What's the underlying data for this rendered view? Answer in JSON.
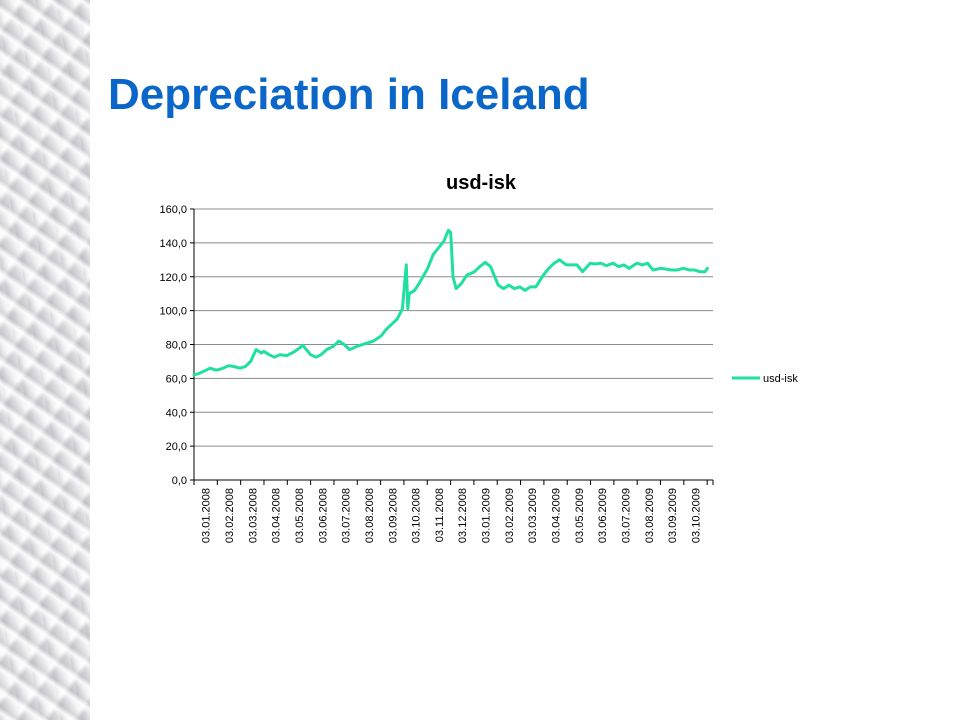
{
  "slide": {
    "title": "Depreciation in Iceland"
  },
  "colors": {
    "title": "#0b66c9",
    "series": "#1fdfa2",
    "grid": "#8c8c8c"
  },
  "chart_data": {
    "type": "line",
    "title": "usd-isk",
    "xlabel": "",
    "ylabel": "",
    "ylim": [
      0,
      160
    ],
    "yticks": [
      "0,0",
      "20,0",
      "40,0",
      "60,0",
      "80,0",
      "100,0",
      "120,0",
      "140,0",
      "160,0"
    ],
    "x_ticks": [
      "03.01.2008",
      "03.02.2008",
      "03.03.2008",
      "03.04.2008",
      "03.05.2008",
      "03.06.2008",
      "03.07.2008",
      "03.08.2008",
      "03.09.2008",
      "03.10.2008",
      "03.11.2008",
      "03.12.2008",
      "03.01.2009",
      "03.02.2009",
      "03.03.2009",
      "03.04.2009",
      "03.05.2009",
      "03.06.2009",
      "03.07.2009",
      "03.08.2009",
      "03.09.2009",
      "03.10.2009"
    ],
    "x_range": [
      "03.01.2008",
      "early 11.2009"
    ],
    "grid": "horizontal major gridlines",
    "legend": {
      "position": "right",
      "entries": [
        "usd-isk"
      ]
    },
    "series": [
      {
        "name": "usd-isk",
        "points": [
          [
            "03.01.2008",
            62
          ],
          [
            "10.01.2008",
            63
          ],
          [
            "17.01.2008",
            64.5
          ],
          [
            "24.01.2008",
            66
          ],
          [
            "31.01.2008",
            65
          ],
          [
            "03.02.2008",
            65
          ],
          [
            "10.02.2008",
            66
          ],
          [
            "17.02.2008",
            67.5
          ],
          [
            "24.02.2008",
            67
          ],
          [
            "03.03.2008",
            66
          ],
          [
            "10.03.2008",
            67
          ],
          [
            "17.03.2008",
            70
          ],
          [
            "24.03.2008",
            77
          ],
          [
            "31.03.2008",
            75
          ],
          [
            "03.04.2008",
            76
          ],
          [
            "10.04.2008",
            74
          ],
          [
            "17.04.2008",
            72.5
          ],
          [
            "24.04.2008",
            74
          ],
          [
            "03.05.2008",
            73.5
          ],
          [
            "10.05.2008",
            75
          ],
          [
            "17.05.2008",
            77
          ],
          [
            "24.05.2008",
            79.5
          ],
          [
            "03.06.2008",
            74
          ],
          [
            "10.06.2008",
            72.5
          ],
          [
            "17.06.2008",
            74
          ],
          [
            "24.06.2008",
            77
          ],
          [
            "03.07.2008",
            79
          ],
          [
            "10.07.2008",
            82
          ],
          [
            "17.07.2008",
            80
          ],
          [
            "24.07.2008",
            77
          ],
          [
            "03.08.2008",
            79
          ],
          [
            "10.08.2008",
            80
          ],
          [
            "17.08.2008",
            81
          ],
          [
            "24.08.2008",
            82
          ],
          [
            "03.09.2008",
            85
          ],
          [
            "10.09.2008",
            89
          ],
          [
            "17.09.2008",
            92
          ],
          [
            "24.09.2008",
            95
          ],
          [
            "01.10.2008",
            101
          ],
          [
            "03.10.2008",
            112
          ],
          [
            "06.10.2008",
            127
          ],
          [
            "08.10.2008",
            101
          ],
          [
            "10.10.2008",
            110
          ],
          [
            "17.10.2008",
            112
          ],
          [
            "24.10.2008",
            117
          ],
          [
            "03.11.2008",
            125
          ],
          [
            "10.11.2008",
            133
          ],
          [
            "17.11.2008",
            137
          ],
          [
            "24.11.2008",
            141
          ],
          [
            "30.11.2008",
            147.5
          ],
          [
            "03.12.2008",
            146
          ],
          [
            "06.12.2008",
            120
          ],
          [
            "10.12.2008",
            113
          ],
          [
            "17.12.2008",
            116
          ],
          [
            "24.12.2008",
            121
          ],
          [
            "03.01.2009",
            123
          ],
          [
            "10.01.2009",
            126
          ],
          [
            "17.01.2009",
            128.5
          ],
          [
            "24.01.2009",
            126
          ],
          [
            "03.02.2009",
            115
          ],
          [
            "10.02.2009",
            113
          ],
          [
            "17.02.2009",
            115
          ],
          [
            "24.02.2009",
            113
          ],
          [
            "03.03.2009",
            114
          ],
          [
            "10.03.2009",
            112
          ],
          [
            "17.03.2009",
            114
          ],
          [
            "24.03.2009",
            114
          ],
          [
            "03.04.2009",
            121
          ],
          [
            "10.04.2009",
            125
          ],
          [
            "17.04.2009",
            128
          ],
          [
            "24.04.2009",
            130
          ],
          [
            "03.05.2009",
            127
          ],
          [
            "10.05.2009",
            127
          ],
          [
            "17.05.2009",
            127
          ],
          [
            "24.05.2009",
            123
          ],
          [
            "03.06.2009",
            128
          ],
          [
            "10.06.2009",
            127.5
          ],
          [
            "17.06.2009",
            128
          ],
          [
            "24.06.2009",
            126.5
          ],
          [
            "03.07.2009",
            128
          ],
          [
            "10.07.2009",
            126
          ],
          [
            "17.07.2009",
            127
          ],
          [
            "24.07.2009",
            125
          ],
          [
            "03.08.2009",
            128
          ],
          [
            "10.08.2009",
            127
          ],
          [
            "17.08.2009",
            128
          ],
          [
            "24.08.2009",
            124
          ],
          [
            "03.09.2009",
            125
          ],
          [
            "10.09.2009",
            124.5
          ],
          [
            "17.09.2009",
            124
          ],
          [
            "24.09.2009",
            124
          ],
          [
            "03.10.2009",
            125
          ],
          [
            "10.10.2009",
            124
          ],
          [
            "17.10.2009",
            124
          ],
          [
            "24.10.2009",
            123
          ],
          [
            "31.10.2009",
            123
          ],
          [
            "03.11.2009",
            125
          ]
        ]
      }
    ]
  }
}
